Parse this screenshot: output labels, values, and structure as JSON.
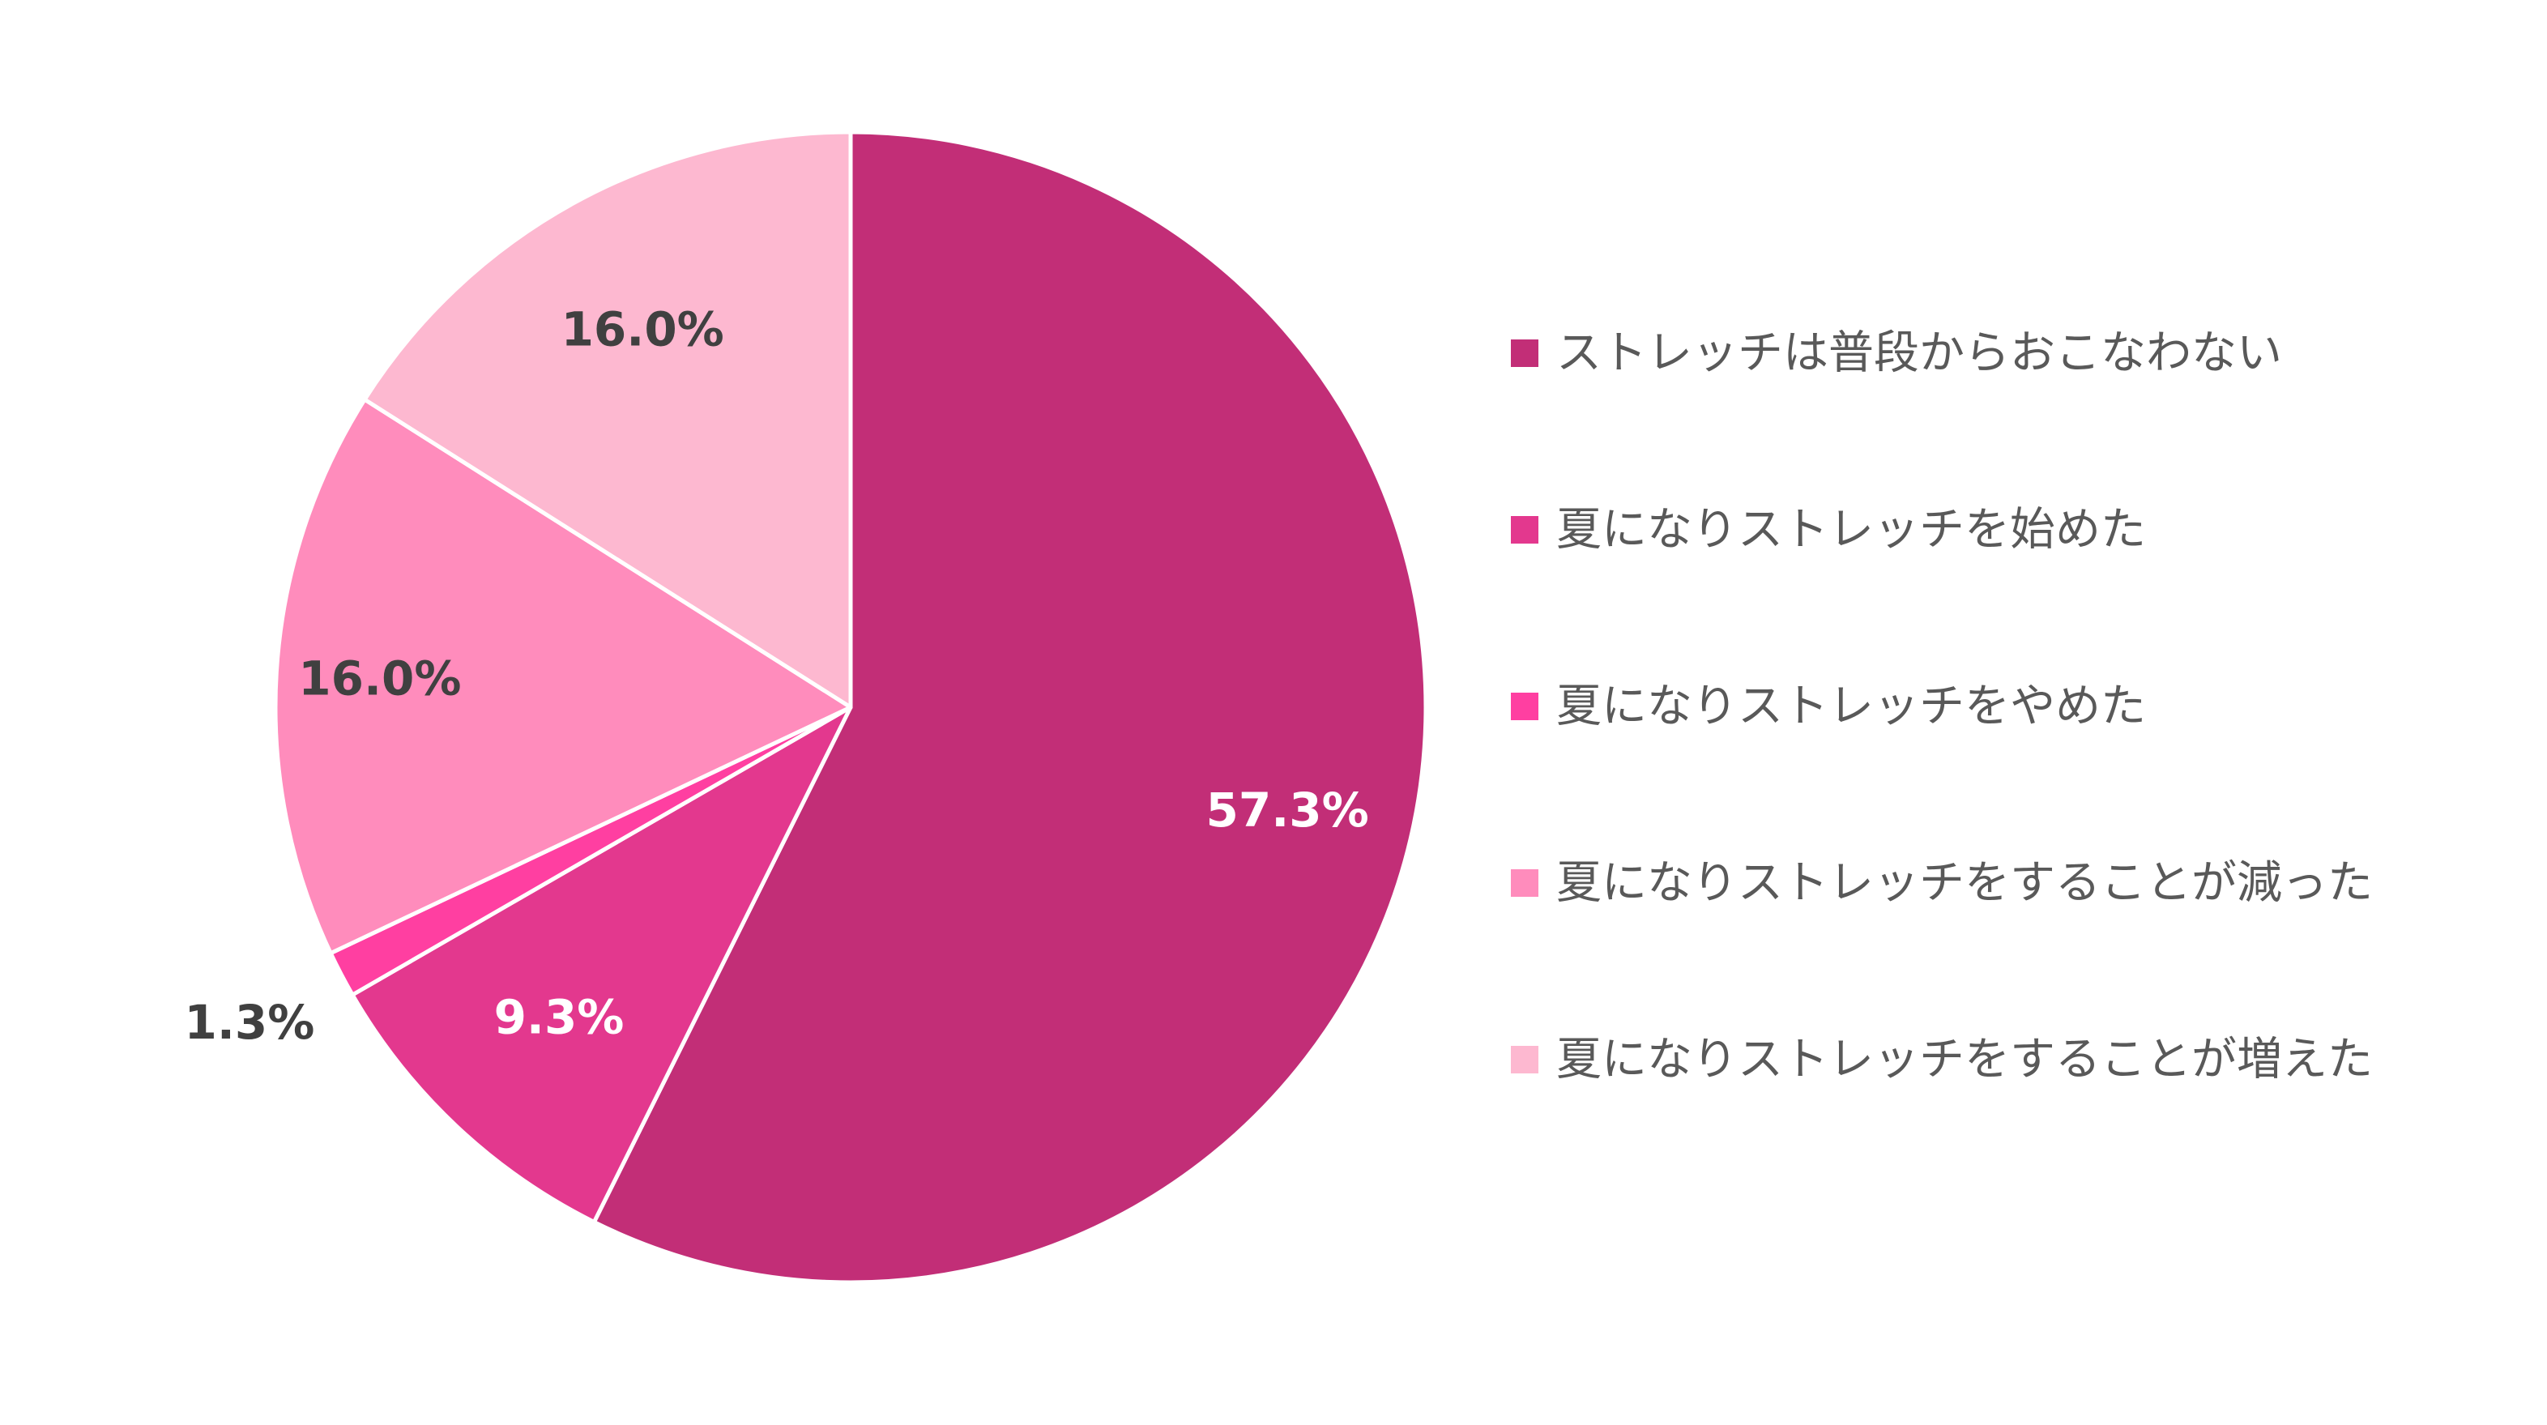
{
  "chart_data": {
    "type": "pie",
    "title": "",
    "start_angle_deg": 0,
    "direction": "clockwise",
    "legend_position": "right",
    "slices": [
      {
        "label": "ストレッチは普段からおこなわない",
        "value": 57.3,
        "value_label": "57.3%",
        "color": "#c22e77",
        "label_color": "#ffffff"
      },
      {
        "label": "夏になりストレッチを始めた",
        "value": 9.3,
        "value_label": "9.3%",
        "color": "#e3388e",
        "label_color": "#ffffff"
      },
      {
        "label": "夏になりストレッチをやめた",
        "value": 1.3,
        "value_label": "1.3%",
        "color": "#ff3fa1",
        "label_color": "#404040"
      },
      {
        "label": "夏になりストレッチをすることが減った",
        "value": 16.0,
        "value_label": "16.0%",
        "color": "#ff8cbc",
        "label_color": "#404040"
      },
      {
        "label": "夏になりストレッチをすることが増えた",
        "value": 16.0,
        "value_label": "16.0%",
        "color": "#fdb8d0",
        "label_color": "#404040"
      }
    ]
  }
}
